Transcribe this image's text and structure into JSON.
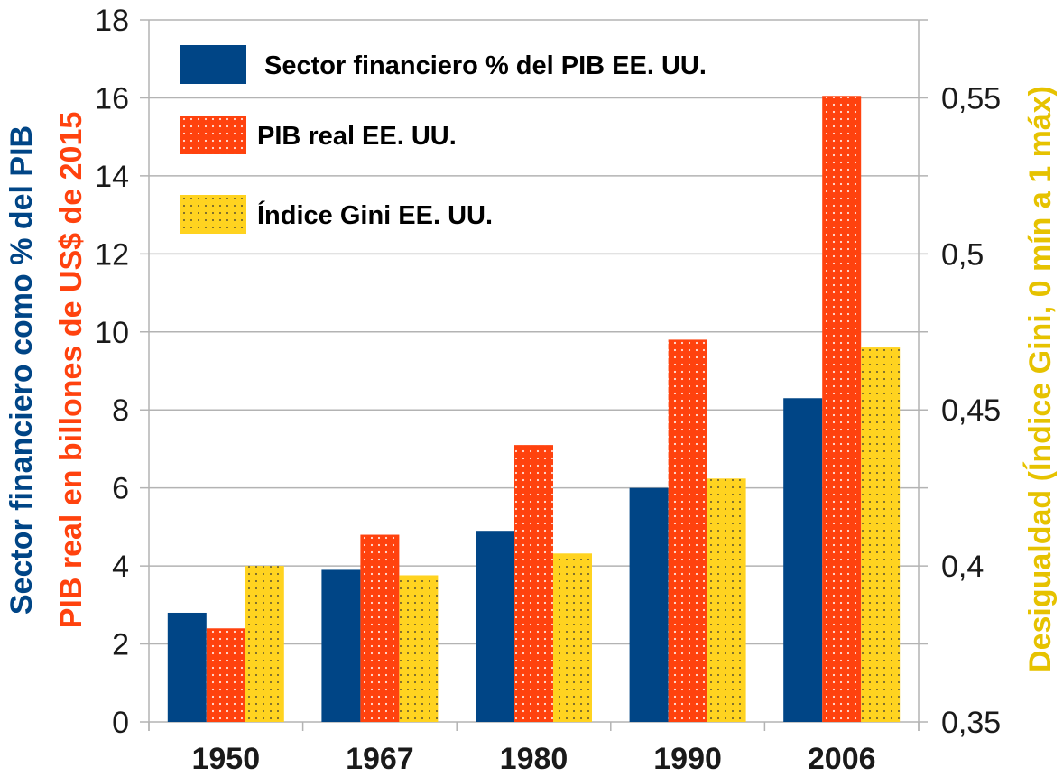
{
  "chart_data": {
    "type": "bar",
    "categories": [
      "1950",
      "1967",
      "1980",
      "1990",
      "2006"
    ],
    "series": [
      {
        "name": "Sector financiero % del PIB EE. UU.",
        "axis": "left",
        "color": "#004586",
        "pattern": "solid",
        "values": [
          2.8,
          3.9,
          4.9,
          6.0,
          8.3
        ]
      },
      {
        "name": "PIB real  EE. UU.",
        "axis": "left",
        "color": "#ff420e",
        "pattern": "dots",
        "values": [
          2.4,
          4.8,
          7.1,
          9.8,
          16.05
        ]
      },
      {
        "name": "Índice Gini  EE. UU.",
        "axis": "right",
        "color": "#ffd320",
        "pattern": "dots",
        "values": [
          0.4,
          0.397,
          0.404,
          0.428,
          0.47
        ]
      }
    ],
    "y_left": {
      "range": [
        0,
        18
      ],
      "ticks": [
        "0",
        "2",
        "4",
        "6",
        "8",
        "10",
        "12",
        "14",
        "16",
        "18"
      ],
      "label_line1": "Sector financiero como % del PIB",
      "label_line1_color": "#004586",
      "label_line2": "PIB real en billones de US$ de 2015",
      "label_line2_color": "#ff420e"
    },
    "y_right": {
      "range": [
        0.35,
        0.575
      ],
      "ticks": [
        {
          "value": 0.35,
          "label": "0,35"
        },
        {
          "value": 0.4,
          "label": "0,4"
        },
        {
          "value": 0.45,
          "label": "0,45"
        },
        {
          "value": 0.5,
          "label": "0,5"
        },
        {
          "value": 0.55,
          "label": "0,55"
        }
      ],
      "label": "Desigualdad (Índice Gini, 0 mín a 1 máx)",
      "label_color": "#e6c200"
    },
    "grid": true,
    "legend_position": "top-left"
  }
}
